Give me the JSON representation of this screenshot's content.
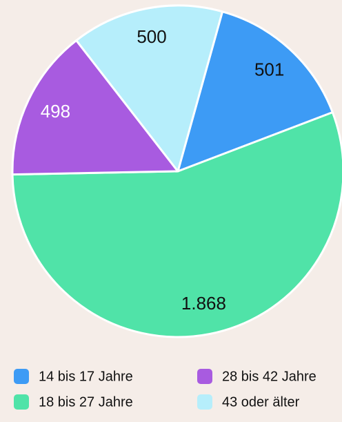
{
  "chart_data": {
    "type": "pie",
    "series": [
      {
        "name": "14 bis 17 Jahre",
        "color": "#3d9bf5",
        "label_color": "#111111",
        "values": [
          501
        ]
      },
      {
        "name": "18 bis 27 Jahre",
        "color": "#50e3a8",
        "label_color": "#111111",
        "values": [
          1868
        ],
        "value_labels": [
          "1.868"
        ]
      },
      {
        "name": "28 bis 42 Jahre",
        "color": "#a85be0",
        "label_color": "#ffffff",
        "values": [
          498
        ]
      },
      {
        "name": "43 oder älter",
        "color": "#b6eefb",
        "label_color": "#111111",
        "values": [
          500
        ]
      }
    ]
  }
}
